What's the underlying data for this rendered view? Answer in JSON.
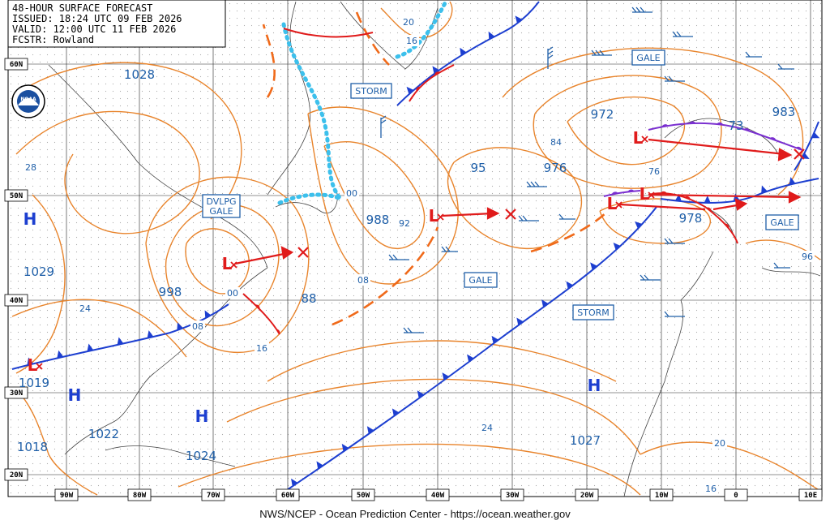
{
  "header": {
    "line1": "48-HOUR SURFACE FORECAST",
    "line2": "ISSUED: 18:24 UTC 09 FEB 2026",
    "line3": "VALID: 12:00 UTC 11 FEB 2026",
    "line4": "FCSTR: Rowland"
  },
  "logo": "NOAA",
  "latitude_labels": [
    "60N",
    "50N",
    "40N",
    "30N",
    "20N"
  ],
  "longitude_labels": [
    "90W",
    "80W",
    "70W",
    "60W",
    "50W",
    "40W",
    "30W",
    "20W",
    "10W",
    "0",
    "10E"
  ],
  "pressure_labels": [
    "1028",
    "1029",
    "1019",
    "1018",
    "1022",
    "1024",
    "998",
    "88",
    "988",
    "95",
    "976",
    "972",
    "983",
    "73",
    "978",
    "1027"
  ],
  "isobar_labels": [
    "28",
    "24",
    "08",
    "16",
    "00",
    "92",
    "08",
    "00",
    "84",
    "76",
    "96",
    "20",
    "16",
    "24",
    "20",
    "16"
  ],
  "warnings": [
    "STORM",
    "GALE",
    "GALE",
    "STORM",
    "GALE"
  ],
  "developing_gale": [
    "DVLPG",
    "GALE"
  ],
  "high_label": "H",
  "low_label": "L",
  "footer": "NWS/NCEP - Ocean Prediction Center - https://ocean.weather.gov"
}
